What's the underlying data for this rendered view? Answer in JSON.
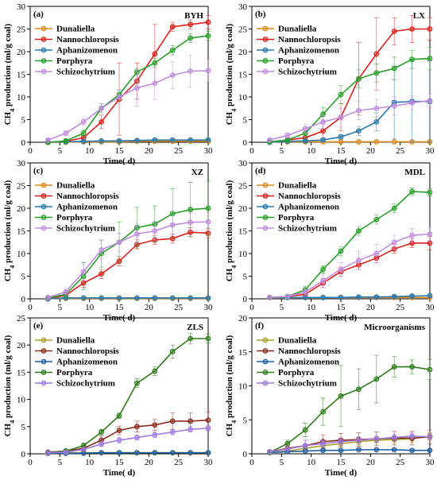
{
  "chart_data": [
    {
      "type": "line",
      "panel": "(a)",
      "title": "BYH",
      "xlabel": "Time( d)",
      "ylabel": [
        "CH",
        "4",
        " production (ml/g coal)"
      ],
      "x": [
        3,
        6,
        9,
        12,
        15,
        18,
        21,
        24,
        27,
        30
      ],
      "xlim": [
        0,
        30
      ],
      "xticks": [
        0,
        5,
        10,
        15,
        20,
        25,
        30
      ],
      "ylim": [
        0,
        30
      ],
      "yticks": [
        0,
        5,
        10,
        15,
        20,
        25,
        30
      ],
      "series": [
        {
          "name": "Dunaliella",
          "color": "#d98c1a",
          "values": [
            0,
            0,
            0.1,
            0.1,
            0.1,
            0.2,
            0.2,
            0.2,
            0.2,
            0.2
          ],
          "errors": [
            0.1,
            0.1,
            0.1,
            0.1,
            0.1,
            0.1,
            0.1,
            0.1,
            0.1,
            0.1
          ]
        },
        {
          "name": "Nannochloropsis",
          "color": "#e0201b",
          "values": [
            0,
            0.2,
            1,
            4.5,
            9.5,
            13.5,
            19.5,
            25.5,
            26,
            26.5
          ],
          "errors": [
            0.2,
            0.3,
            0.5,
            1.5,
            8,
            4,
            6.5,
            1,
            1,
            1.5
          ]
        },
        {
          "name": "Aphanizomenon",
          "color": "#2a7ab0",
          "values": [
            0,
            0.1,
            0.2,
            0.3,
            0.3,
            0.4,
            0.5,
            0.5,
            0.5,
            0.5
          ],
          "errors": [
            0.1,
            0.1,
            0.1,
            0.1,
            0.1,
            0.1,
            0.1,
            0.1,
            0.1,
            0.1
          ]
        },
        {
          "name": "Porphyra",
          "color": "#27a127",
          "values": [
            0,
            0.3,
            2,
            7.5,
            10.5,
            15.5,
            17.5,
            20.3,
            23,
            23.5
          ],
          "errors": [
            0.2,
            0.3,
            0.8,
            1,
            1,
            0.8,
            1,
            1,
            1,
            1
          ]
        },
        {
          "name": "Schizochytrium",
          "color": "#c28de0",
          "values": [
            0.5,
            2,
            4.5,
            7.5,
            10,
            12,
            13,
            14.8,
            15.7,
            15.8
          ],
          "errors": [
            0.3,
            0.5,
            0.8,
            1,
            1.5,
            4,
            3.5,
            3,
            3.5,
            2.5
          ]
        }
      ]
    },
    {
      "type": "line",
      "panel": "(b)",
      "title": "LX",
      "xlabel": "Time( d)",
      "ylabel": [
        "CH",
        "4",
        " production (ml/g coal)"
      ],
      "x": [
        3,
        6,
        9,
        12,
        15,
        18,
        21,
        24,
        27,
        30
      ],
      "xlim": [
        0,
        30
      ],
      "xticks": [
        0,
        5,
        10,
        15,
        20,
        25,
        30
      ],
      "ylim": [
        0,
        30
      ],
      "yticks": [
        0,
        5,
        10,
        15,
        20,
        25,
        30
      ],
      "series": [
        {
          "name": "Dunaliella",
          "color": "#d98c1a",
          "values": [
            0.1,
            0.1,
            0.1,
            0.1,
            0.1,
            0.1,
            0.1,
            0.1,
            0.1,
            0.1
          ],
          "errors": [
            0.1,
            0.1,
            0.1,
            0.1,
            0.1,
            0.1,
            0.1,
            0.1,
            0.1,
            0.1
          ]
        },
        {
          "name": "Nannochloropsis",
          "color": "#e0201b",
          "values": [
            0.1,
            0.5,
            1,
            2.5,
            5.5,
            14,
            19.5,
            24.5,
            25,
            25
          ],
          "errors": [
            0.2,
            0.5,
            1,
            1.5,
            3,
            8,
            8,
            3,
            3,
            2.5
          ]
        },
        {
          "name": "Aphanizomenon",
          "color": "#2a7ab0",
          "values": [
            0,
            0.2,
            0.3,
            0.5,
            1.2,
            2.5,
            4.5,
            8.8,
            9,
            9
          ],
          "errors": [
            0.1,
            0.2,
            0.2,
            0.3,
            0.5,
            1,
            2,
            8,
            9,
            9
          ]
        },
        {
          "name": "Porphyra",
          "color": "#27a127",
          "values": [
            0.1,
            0.5,
            2,
            6.2,
            10.5,
            14,
            15.3,
            16.3,
            18.3,
            18.5
          ],
          "errors": [
            0.2,
            0.5,
            1,
            1.5,
            2,
            2,
            2,
            2.5,
            2,
            2.5
          ]
        },
        {
          "name": "Schizochytrium",
          "color": "#c28de0",
          "values": [
            0.5,
            1.5,
            3,
            4.5,
            5.5,
            7,
            7.5,
            8,
            8.7,
            9.2
          ],
          "errors": [
            0.3,
            0.5,
            1,
            1.5,
            2,
            2,
            2,
            2,
            1.5,
            1.5
          ]
        }
      ]
    },
    {
      "type": "line",
      "panel": "(c)",
      "title": "XZ",
      "xlabel": "Time( d)",
      "ylabel": [
        "CH",
        "4",
        " production (ml/g coal)"
      ],
      "x": [
        3,
        6,
        9,
        12,
        15,
        18,
        21,
        24,
        27,
        30
      ],
      "xlim": [
        0,
        30
      ],
      "xticks": [
        0,
        5,
        10,
        15,
        20,
        25,
        30
      ],
      "ylim": [
        0,
        30
      ],
      "yticks": [
        0,
        5,
        10,
        15,
        20,
        25,
        30
      ],
      "series": [
        {
          "name": "Dunaliella",
          "color": "#d98c1a",
          "values": [
            0.1,
            0.1,
            0.1,
            0.1,
            0.1,
            0.1,
            0.1,
            0.1,
            0.1,
            0.1
          ],
          "errors": [
            0.1,
            0.1,
            0.1,
            0.1,
            0.1,
            0.1,
            0.1,
            0.1,
            0.1,
            0.1
          ]
        },
        {
          "name": "Nannochloropsis",
          "color": "#e0201b",
          "values": [
            0,
            0.8,
            3.5,
            5.5,
            8.3,
            12,
            13,
            13.3,
            14.7,
            14.5
          ],
          "errors": [
            0.2,
            0.5,
            1,
            1,
            1,
            1,
            1,
            1,
            1,
            1
          ]
        },
        {
          "name": "Aphanizomenon",
          "color": "#2a7ab0",
          "values": [
            0,
            0.2,
            0.2,
            0.2,
            0.2,
            0.2,
            0.2,
            0.2,
            0.2,
            0.2
          ],
          "errors": [
            0.1,
            0.1,
            0.1,
            0.1,
            0.1,
            0.1,
            0.1,
            0.1,
            0.1,
            0.1
          ]
        },
        {
          "name": "Porphyra",
          "color": "#27a127",
          "values": [
            0.2,
            1,
            5,
            10,
            12.5,
            15.7,
            16.5,
            18.8,
            19.7,
            20
          ],
          "errors": [
            0.3,
            0.8,
            3,
            3,
            4.5,
            4.5,
            4,
            5.5,
            6,
            6
          ]
        },
        {
          "name": "Schizochytrium",
          "color": "#c28de0",
          "values": [
            0.3,
            1.5,
            6,
            10.8,
            12.5,
            14.3,
            15,
            16.3,
            16.9,
            17
          ],
          "errors": [
            0.3,
            0.8,
            2,
            2,
            2,
            2,
            2,
            2,
            2,
            2
          ]
        }
      ]
    },
    {
      "type": "line",
      "panel": "(d)",
      "title": "MDL",
      "xlabel": "Time( d)",
      "ylabel": [
        "CH",
        "4",
        " production (ml/g coal)"
      ],
      "x": [
        3,
        6,
        9,
        12,
        15,
        18,
        21,
        24,
        27,
        30
      ],
      "xlim": [
        0,
        30
      ],
      "xticks": [
        0,
        5,
        10,
        15,
        20,
        25,
        30
      ],
      "ylim": [
        0,
        30
      ],
      "yticks": [
        0,
        5,
        10,
        15,
        20,
        25,
        30
      ],
      "series": [
        {
          "name": "Dunaliella",
          "color": "#d98c1a",
          "values": [
            0.3,
            0.3,
            0.3,
            0.3,
            0.3,
            0.3,
            0.3,
            0.3,
            0.3,
            0.3
          ],
          "errors": [
            0.1,
            0.1,
            0.1,
            0.1,
            0.1,
            0.1,
            0.1,
            0.1,
            0.1,
            0.1
          ]
        },
        {
          "name": "Nannochloropsis",
          "color": "#e0201b",
          "values": [
            0.3,
            0.5,
            1,
            3.5,
            6,
            7.5,
            9,
            11,
            12.3,
            12.3
          ],
          "errors": [
            0.2,
            0.3,
            0.5,
            1,
            1,
            1,
            1,
            1,
            1,
            1.5
          ]
        },
        {
          "name": "Aphanizomenon",
          "color": "#2a7ab0",
          "values": [
            0.3,
            0.3,
            0.3,
            0.3,
            0.3,
            0.4,
            0.4,
            0.5,
            0.6,
            0.7
          ],
          "errors": [
            0.1,
            0.1,
            0.1,
            0.1,
            0.1,
            0.2,
            0.2,
            0.2,
            0.3,
            0.3
          ]
        },
        {
          "name": "Porphyra",
          "color": "#27a127",
          "values": [
            0.3,
            0.5,
            2,
            6.5,
            10.5,
            15,
            17.5,
            20,
            23.7,
            23.5
          ],
          "errors": [
            0.2,
            0.3,
            0.8,
            0.8,
            1,
            1,
            1,
            1,
            0.8,
            0.8
          ]
        },
        {
          "name": "Schizochytrium",
          "color": "#c28de0",
          "values": [
            0.3,
            0.5,
            1.5,
            4,
            6.5,
            8.5,
            10,
            12.5,
            14,
            14.3
          ],
          "errors": [
            0.3,
            0.5,
            1,
            1.5,
            1.5,
            2,
            2,
            1.5,
            1.5,
            1.5
          ]
        }
      ]
    },
    {
      "type": "line",
      "panel": "(e)",
      "title": "ZLS",
      "xlabel": "Time( d)",
      "ylabel": [
        "CH",
        "4",
        " production (ml/g coal)"
      ],
      "x": [
        3,
        6,
        9,
        12,
        15,
        18,
        21,
        24,
        27,
        30
      ],
      "xlim": [
        0,
        30
      ],
      "xticks": [
        0,
        5,
        10,
        15,
        20,
        25,
        30
      ],
      "ylim": [
        0,
        25
      ],
      "yticks": [
        0,
        5,
        10,
        15,
        20,
        25
      ],
      "series": [
        {
          "name": "Dunaliella",
          "color": "#a8a02a",
          "values": [
            0.2,
            0.2,
            0.2,
            0.2,
            0.2,
            0.2,
            0.2,
            0.2,
            0.2,
            0.2
          ],
          "errors": [
            0.1,
            0.1,
            0.1,
            0.1,
            0.1,
            0.1,
            0.1,
            0.1,
            0.1,
            0.1
          ]
        },
        {
          "name": "Nannochloropsis",
          "color": "#8b2a1a",
          "values": [
            0.3,
            0.5,
            1,
            2.5,
            4.3,
            5,
            5.3,
            6,
            6,
            6.2
          ],
          "errors": [
            0.2,
            0.3,
            0.5,
            0.8,
            0.8,
            1,
            1,
            1.5,
            1.5,
            1.5
          ]
        },
        {
          "name": "Aphanizomenon",
          "color": "#1f5fa0",
          "values": [
            0.1,
            0.1,
            0.1,
            0.2,
            0.2,
            0.2,
            0.2,
            0.2,
            0.2,
            0.2
          ],
          "errors": [
            0.1,
            0.1,
            0.1,
            0.1,
            0.1,
            0.1,
            0.1,
            0.1,
            0.1,
            0.1
          ]
        },
        {
          "name": "Porphyra",
          "color": "#2e7d1a",
          "values": [
            0.2,
            0.5,
            1.5,
            4,
            7,
            13,
            15.2,
            18.8,
            21.2,
            21.2
          ],
          "errors": [
            0.2,
            0.3,
            0.5,
            0.5,
            0.5,
            0.8,
            0.8,
            1.2,
            1,
            0.8
          ]
        },
        {
          "name": "Schizochytrium",
          "color": "#a07ae0",
          "values": [
            0.2,
            0.3,
            0.8,
            1.8,
            2.5,
            3,
            3.5,
            4,
            4.5,
            4.7
          ],
          "errors": [
            0.1,
            0.2,
            0.3,
            0.5,
            0.5,
            0.5,
            0.5,
            0.5,
            0.5,
            0.5
          ]
        }
      ]
    },
    {
      "type": "line",
      "panel": "(f)",
      "title": "Microorganisms",
      "xlabel": "Time( d)",
      "ylabel": [
        "CH",
        "4",
        " production (ml/g coal)"
      ],
      "x": [
        3,
        6,
        9,
        12,
        15,
        18,
        21,
        24,
        27,
        30
      ],
      "xlim": [
        0,
        30
      ],
      "xticks": [
        0,
        5,
        10,
        15,
        20,
        25,
        30
      ],
      "ylim": [
        0,
        20
      ],
      "yticks": [
        0,
        5,
        10,
        15,
        20
      ],
      "series": [
        {
          "name": "Dunaliella",
          "color": "#a8a02a",
          "values": [
            0.2,
            0.4,
            0.8,
            1.2,
            1.5,
            1.8,
            2,
            2.1,
            2.2,
            2.6
          ],
          "errors": [
            0.1,
            0.2,
            0.3,
            0.5,
            0.5,
            0.5,
            0.5,
            0.5,
            0.5,
            0.5
          ]
        },
        {
          "name": "Nannochloropsis",
          "color": "#8b2a1a",
          "values": [
            0.3,
            0.8,
            1.2,
            1.8,
            2,
            2.1,
            2.2,
            2.3,
            2.3,
            2.5
          ],
          "errors": [
            0.2,
            0.5,
            0.8,
            1,
            1,
            1,
            1,
            1,
            1,
            1
          ]
        },
        {
          "name": "Aphanizomenon",
          "color": "#1f5fa0",
          "values": [
            0.2,
            0.3,
            0.4,
            0.5,
            0.5,
            0.6,
            0.6,
            0.6,
            0.5,
            0.5
          ],
          "errors": [
            0.1,
            0.1,
            0.1,
            0.1,
            0.1,
            0.1,
            0.1,
            0.1,
            0.1,
            0.1
          ]
        },
        {
          "name": "Porphyra",
          "color": "#2e7d1a",
          "values": [
            0.2,
            1.5,
            3.5,
            6.2,
            8.5,
            9.5,
            11,
            12.8,
            12.8,
            12.4
          ],
          "errors": [
            0.2,
            0.5,
            1,
            2,
            4.5,
            3,
            3.5,
            1.5,
            1,
            1.5
          ]
        },
        {
          "name": "Schizochytrium",
          "color": "#a07ae0",
          "values": [
            0.3,
            0.7,
            1.2,
            1.5,
            1.8,
            2,
            2.2,
            2.4,
            2.6,
            2.5
          ],
          "errors": [
            0.2,
            0.5,
            0.8,
            0.5,
            0.5,
            0.5,
            0.5,
            0.5,
            0.5,
            0.5
          ]
        }
      ]
    }
  ]
}
